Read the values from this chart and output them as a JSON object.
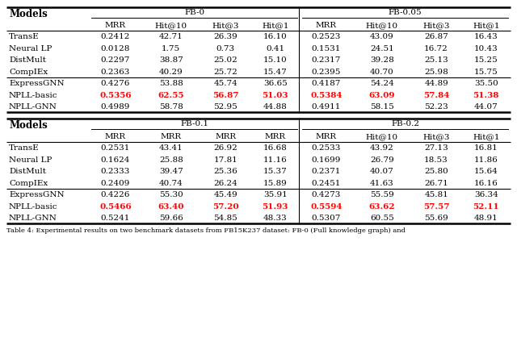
{
  "background_color": "#ffffff",
  "top_table": {
    "group_headers": [
      "FB-0",
      "FB-0.05"
    ],
    "col_headers_top": [
      "MRR",
      "Hit@10",
      "Hit@3",
      "Hit@1",
      "MRR",
      "Hit@10",
      "Hit@3",
      "Hit@1"
    ],
    "col_headers_bottom": [
      "MRR",
      "MRR",
      "MRR",
      "MRR",
      "MRR",
      "Hit@10",
      "Hit@3",
      "Hit@1"
    ],
    "rows": [
      {
        "model": "TransE",
        "vals": [
          "0.2412",
          "42.71",
          "26.39",
          "16.10",
          "0.2523",
          "43.09",
          "26.87",
          "16.43"
        ],
        "red": [
          false,
          false,
          false,
          false,
          false,
          false,
          false,
          false
        ]
      },
      {
        "model": "Neural LP",
        "vals": [
          "0.0128",
          "1.75",
          "0.73",
          "0.41",
          "0.1531",
          "24.51",
          "16.72",
          "10.43"
        ],
        "red": [
          false,
          false,
          false,
          false,
          false,
          false,
          false,
          false
        ]
      },
      {
        "model": "DistMult",
        "vals": [
          "0.2297",
          "38.87",
          "25.02",
          "15.10",
          "0.2317",
          "39.28",
          "25.13",
          "15.25"
        ],
        "red": [
          false,
          false,
          false,
          false,
          false,
          false,
          false,
          false
        ]
      },
      {
        "model": "CompIEx",
        "vals": [
          "0.2363",
          "40.29",
          "25.72",
          "15.47",
          "0.2395",
          "40.70",
          "25.98",
          "15.75"
        ],
        "red": [
          false,
          false,
          false,
          false,
          false,
          false,
          false,
          false
        ]
      },
      {
        "model": "ExpressGNN",
        "vals": [
          "0.4276",
          "53.88",
          "45.74",
          "36.65",
          "0.4187",
          "54.24",
          "44.89",
          "35.50"
        ],
        "red": [
          false,
          false,
          false,
          false,
          false,
          false,
          false,
          false
        ]
      },
      {
        "model": "NPLL-basic",
        "vals": [
          "0.5356",
          "62.55",
          "56.87",
          "51.03",
          "0.5384",
          "63.09",
          "57.84",
          "51.38"
        ],
        "red": [
          true,
          true,
          true,
          true,
          true,
          true,
          true,
          true
        ]
      },
      {
        "model": "NPLL-GNN",
        "vals": [
          "0.4989",
          "58.78",
          "52.95",
          "44.88",
          "0.4911",
          "58.15",
          "52.23",
          "44.07"
        ],
        "red": [
          false,
          false,
          false,
          false,
          false,
          false,
          false,
          false
        ]
      }
    ],
    "sep_after_row": 4
  },
  "bottom_table": {
    "group_headers": [
      "FB-0.1",
      "FB-0.2"
    ],
    "col_headers_top": [
      "MRR",
      "MRR",
      "MRR",
      "MRR",
      "MRR",
      "Hit@10",
      "Hit@3",
      "Hit@1"
    ],
    "rows": [
      {
        "model": "TransE",
        "vals": [
          "0.2531",
          "43.41",
          "26.92",
          "16.68",
          "0.2533",
          "43.92",
          "27.13",
          "16.81"
        ],
        "red": [
          false,
          false,
          false,
          false,
          false,
          false,
          false,
          false
        ]
      },
      {
        "model": "Neural LP",
        "vals": [
          "0.1624",
          "25.88",
          "17.81",
          "11.16",
          "0.1699",
          "26.79",
          "18.53",
          "11.86"
        ],
        "red": [
          false,
          false,
          false,
          false,
          false,
          false,
          false,
          false
        ]
      },
      {
        "model": "DistMult",
        "vals": [
          "0.2333",
          "39.47",
          "25.36",
          "15.37",
          "0.2371",
          "40.07",
          "25.80",
          "15.64"
        ],
        "red": [
          false,
          false,
          false,
          false,
          false,
          false,
          false,
          false
        ]
      },
      {
        "model": "CompIEx",
        "vals": [
          "0.2409",
          "40.74",
          "26.24",
          "15.89",
          "0.2451",
          "41.63",
          "26.71",
          "16.16"
        ],
        "red": [
          false,
          false,
          false,
          false,
          false,
          false,
          false,
          false
        ]
      },
      {
        "model": "ExpressGNN",
        "vals": [
          "0.4226",
          "55.30",
          "45.49",
          "35.91",
          "0.4273",
          "55.59",
          "45.81",
          "36.34"
        ],
        "red": [
          false,
          false,
          false,
          false,
          false,
          false,
          false,
          false
        ]
      },
      {
        "model": "NPLL-basic",
        "vals": [
          "0.5466",
          "63.40",
          "57.20",
          "51.93",
          "0.5594",
          "63.62",
          "57.57",
          "52.11"
        ],
        "red": [
          true,
          true,
          true,
          true,
          true,
          true,
          true,
          true
        ]
      },
      {
        "model": "NPLL-GNN",
        "vals": [
          "0.5241",
          "59.66",
          "54.85",
          "48.33",
          "0.5307",
          "60.55",
          "55.69",
          "48.91"
        ],
        "red": [
          false,
          false,
          false,
          false,
          false,
          false,
          false,
          false
        ]
      }
    ],
    "sep_after_row": 4
  },
  "footer_text": "Table 4: Experimental results on two benchmark datasets from FB15K237 dataset: FB-0 (Full knowledge graph) and",
  "red_color": "#ff0000",
  "black_color": "#000000",
  "gray_color": "#555555"
}
